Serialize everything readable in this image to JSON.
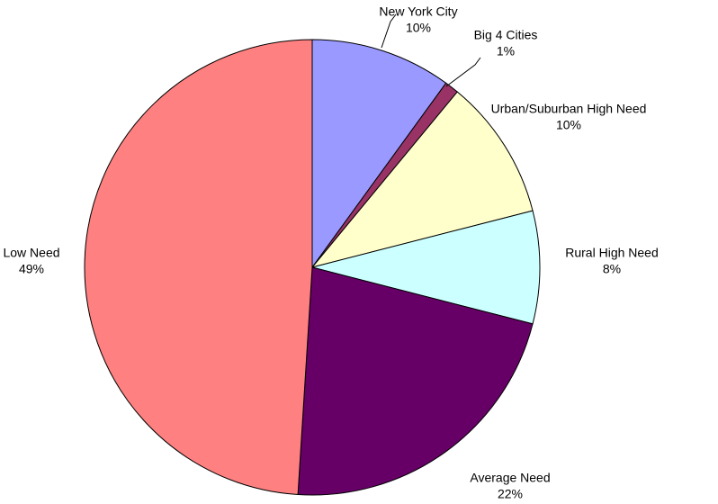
{
  "chart_data": {
    "type": "pie",
    "categories": [
      "New York City",
      "Big 4 Cities",
      "Urban/Suburban High Need",
      "Rural High Need",
      "Average Need",
      "Low Need"
    ],
    "values": [
      10,
      1,
      10,
      8,
      22,
      49
    ],
    "value_labels": [
      "10%",
      "1%",
      "10%",
      "8%",
      "22%",
      "49%"
    ],
    "colors": [
      "#9999ff",
      "#993366",
      "#ffffcc",
      "#ccffff",
      "#660066",
      "#ff8080"
    ]
  }
}
